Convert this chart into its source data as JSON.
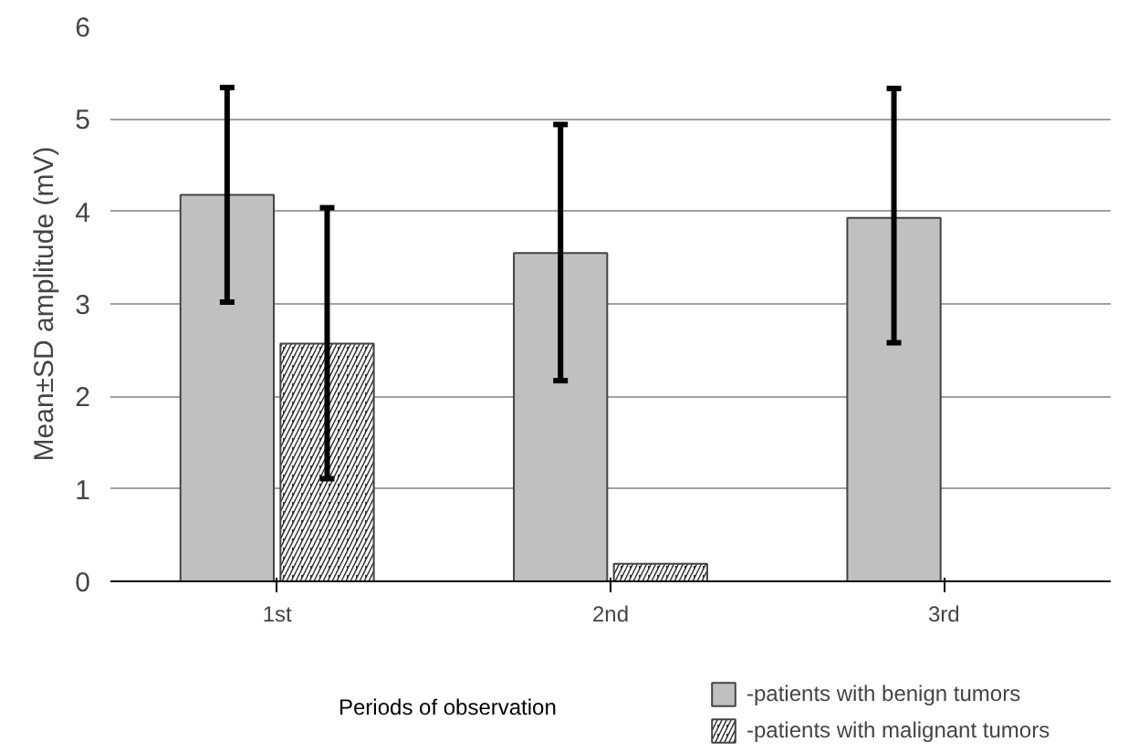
{
  "chart_data": {
    "type": "bar",
    "xlabel": "Periods of observation",
    "ylabel": "Mean±SD amplitude (mV)",
    "categories": [
      "1st",
      "2nd",
      "3rd"
    ],
    "series": [
      {
        "name": "-patients with benign tumors",
        "color": "#c0c0c0",
        "values": [
          4.18,
          3.55,
          3.93
        ],
        "errors": [
          [
            3.02,
            5.34
          ],
          [
            2.17,
            4.94
          ],
          [
            2.58,
            5.33
          ]
        ]
      },
      {
        "name": "-patients with malignant tumors",
        "color": "#333333",
        "values": [
          2.57,
          0.19,
          null
        ],
        "errors": [
          [
            1.11,
            4.04
          ],
          null,
          null
        ]
      }
    ],
    "ylim": [
      0,
      6
    ],
    "yticks": [
      0,
      1,
      2,
      3,
      4,
      5,
      6
    ],
    "grid": "y",
    "legend": "bottom right"
  }
}
